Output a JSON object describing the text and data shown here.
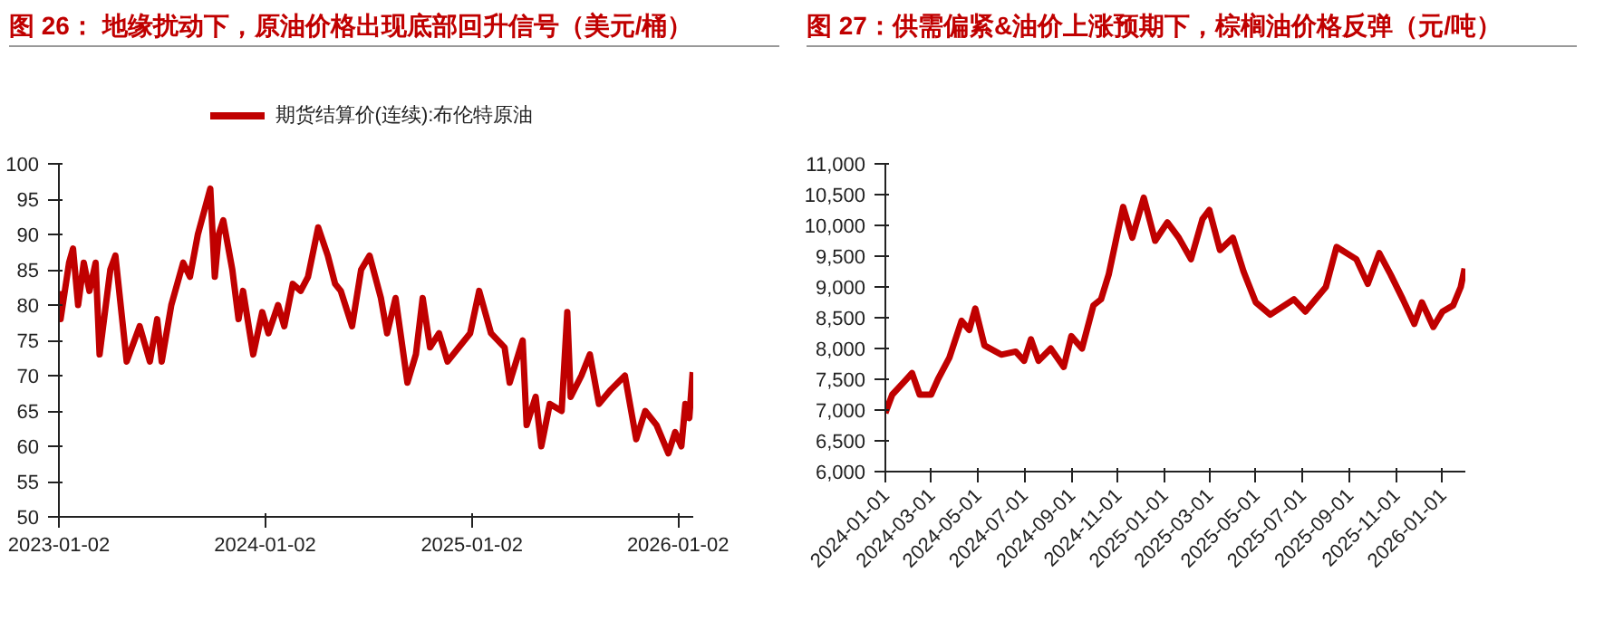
{
  "chart_data": [
    {
      "type": "line",
      "title": "图 26：  地缘扰动下，原油价格出现底部回升信号（美元/桶）",
      "legend": "top",
      "grid": false,
      "marker": "none",
      "line_style": "solid",
      "xlim": [
        "2023-01-02",
        "2026-01-29"
      ],
      "xticks": [
        "2023-01-02",
        "2024-01-02",
        "2025-01-02",
        "2026-01-02"
      ],
      "ylim": [
        50,
        100
      ],
      "yticks": [
        50,
        55,
        60,
        65,
        70,
        75,
        80,
        85,
        90,
        95,
        100
      ],
      "series": [
        {
          "name": "期货结算价(连续):布伦特原油",
          "color": "#c00000",
          "x": [
            "2023-01-02",
            "2023-01-05",
            "2023-01-20",
            "2023-01-27",
            "2023-02-05",
            "2023-02-15",
            "2023-02-25",
            "2023-03-08",
            "2023-03-15",
            "2023-04-03",
            "2023-04-12",
            "2023-05-02",
            "2023-05-25",
            "2023-06-12",
            "2023-06-25",
            "2023-07-03",
            "2023-07-20",
            "2023-08-10",
            "2023-08-22",
            "2023-09-05",
            "2023-09-27",
            "2023-10-05",
            "2023-10-12",
            "2023-10-20",
            "2023-11-05",
            "2023-11-16",
            "2023-11-24",
            "2023-12-12",
            "2023-12-28",
            "2024-01-08",
            "2024-01-25",
            "2024-02-05",
            "2024-02-20",
            "2024-03-05",
            "2024-03-18",
            "2024-04-05",
            "2024-04-22",
            "2024-05-05",
            "2024-05-15",
            "2024-06-04",
            "2024-06-20",
            "2024-07-05",
            "2024-07-25",
            "2024-08-05",
            "2024-08-20",
            "2024-09-10",
            "2024-09-25",
            "2024-10-07",
            "2024-10-20",
            "2024-11-05",
            "2024-11-20",
            "2024-12-10",
            "2024-12-30",
            "2025-01-15",
            "2025-02-05",
            "2025-03-01",
            "2025-03-10",
            "2025-04-02",
            "2025-04-09",
            "2025-04-25",
            "2025-05-05",
            "2025-05-20",
            "2025-06-10",
            "2025-06-20",
            "2025-06-26",
            "2025-07-15",
            "2025-07-30",
            "2025-08-15",
            "2025-09-05",
            "2025-09-30",
            "2025-10-20",
            "2025-11-05",
            "2025-11-25",
            "2025-12-16",
            "2025-12-28",
            "2026-01-08",
            "2026-01-15",
            "2026-01-22",
            "2026-01-28"
          ],
          "values": [
            82,
            78,
            86,
            88,
            80,
            86,
            82,
            86,
            73,
            85,
            87,
            72,
            77,
            72,
            78,
            72,
            80,
            86,
            84,
            90,
            96.5,
            84,
            90,
            92,
            85,
            78,
            82,
            73,
            79,
            76,
            80,
            77,
            83,
            82,
            84,
            91,
            87,
            83,
            82,
            77,
            85,
            87,
            81,
            76,
            81,
            69,
            73,
            81,
            74,
            76,
            72,
            74,
            76,
            82,
            76,
            74,
            69,
            75,
            63,
            67,
            60,
            66,
            65,
            79,
            67,
            70,
            73,
            66,
            68,
            70,
            61,
            65,
            63,
            59,
            62,
            60,
            66,
            64,
            70.5
          ]
        }
      ]
    },
    {
      "type": "line",
      "title": "图 27：供需偏紧&油价上涨预期下，棕榈油价格反弹（元/吨）",
      "legend": false,
      "grid": false,
      "marker": "none",
      "line_style": "solid",
      "xlim": [
        "2024-01-01",
        "2026-01-31"
      ],
      "xticks": [
        "2024-01-01",
        "2024-03-01",
        "2024-05-01",
        "2024-07-01",
        "2024-09-01",
        "2024-11-01",
        "2025-01-01",
        "2025-03-01",
        "2025-05-01",
        "2025-07-01",
        "2025-09-01",
        "2025-11-01",
        "2026-01-01"
      ],
      "ylim": [
        6000,
        11000
      ],
      "yticks": [
        {
          "value": 6000,
          "label": "6,000"
        },
        {
          "value": 6500,
          "label": "6,500"
        },
        {
          "value": 7000,
          "label": "7,000"
        },
        {
          "value": 7500,
          "label": "7,500"
        },
        {
          "value": 8000,
          "label": "8,000"
        },
        {
          "value": 8500,
          "label": "8,500"
        },
        {
          "value": 9000,
          "label": "9,000"
        },
        {
          "value": 9500,
          "label": "9,500"
        },
        {
          "value": 10000,
          "label": "10,000"
        },
        {
          "value": 10500,
          "label": "10,500"
        },
        {
          "value": 11000,
          "label": "11,000"
        }
      ],
      "series": [
        {
          "color": "#c00000",
          "x": [
            "2024-01-01",
            "2024-01-10",
            "2024-01-25",
            "2024-02-05",
            "2024-02-15",
            "2024-03-01",
            "2024-03-10",
            "2024-03-25",
            "2024-04-10",
            "2024-04-20",
            "2024-04-28",
            "2024-05-10",
            "2024-06-01",
            "2024-06-20",
            "2024-07-01",
            "2024-07-10",
            "2024-07-20",
            "2024-08-05",
            "2024-08-22",
            "2024-09-01",
            "2024-09-15",
            "2024-09-30",
            "2024-10-10",
            "2024-10-20",
            "2024-11-01",
            "2024-11-08",
            "2024-11-20",
            "2024-12-05",
            "2024-12-20",
            "2025-01-05",
            "2025-01-20",
            "2025-02-05",
            "2025-02-20",
            "2025-03-01",
            "2025-03-15",
            "2025-04-01",
            "2025-04-15",
            "2025-05-01",
            "2025-05-20",
            "2025-06-20",
            "2025-07-05",
            "2025-08-01",
            "2025-08-15",
            "2025-09-10",
            "2025-09-25",
            "2025-10-10",
            "2025-10-25",
            "2025-11-10",
            "2025-11-25",
            "2025-12-05",
            "2025-12-20",
            "2026-01-01",
            "2026-01-15",
            "2026-01-25",
            "2026-01-30"
          ],
          "values": [
            6950,
            7250,
            7450,
            7600,
            7250,
            7250,
            7500,
            7850,
            8450,
            8300,
            8650,
            8050,
            7900,
            7950,
            7800,
            8150,
            7800,
            8000,
            7700,
            8200,
            8000,
            8700,
            8800,
            9200,
            9900,
            10300,
            9800,
            10450,
            9750,
            10050,
            9800,
            9450,
            10100,
            10250,
            9600,
            9800,
            9250,
            8750,
            8550,
            8800,
            8600,
            9000,
            9650,
            9450,
            9050,
            9550,
            9200,
            8800,
            8400,
            8750,
            8350,
            8600,
            8700,
            9000,
            9300
          ]
        }
      ]
    }
  ]
}
